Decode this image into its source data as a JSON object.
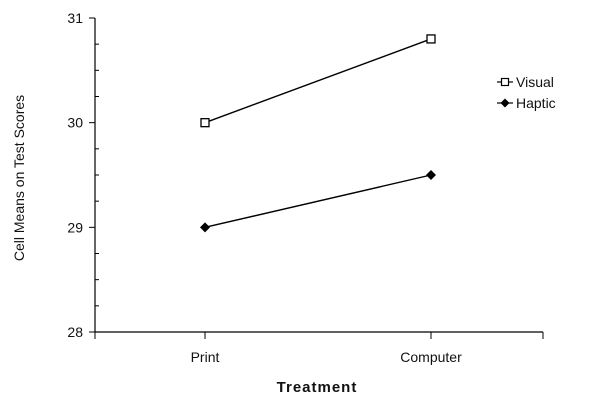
{
  "chart_data": {
    "type": "line",
    "categories": [
      "Print",
      "Computer"
    ],
    "series": [
      {
        "name": "Visual",
        "values": [
          30.0,
          30.8
        ],
        "marker": "square-open"
      },
      {
        "name": "Haptic",
        "values": [
          29.0,
          29.5
        ],
        "marker": "diamond-filled"
      }
    ],
    "xlabel": "Treatment",
    "ylabel": "Cell Means on Test Scores",
    "ylim": [
      28,
      31
    ],
    "yticks": [
      "28",
      "29",
      "30",
      "31"
    ],
    "grid": false,
    "legend_position": "right",
    "colors": {
      "line": "#000000",
      "axis": "#000000"
    }
  }
}
